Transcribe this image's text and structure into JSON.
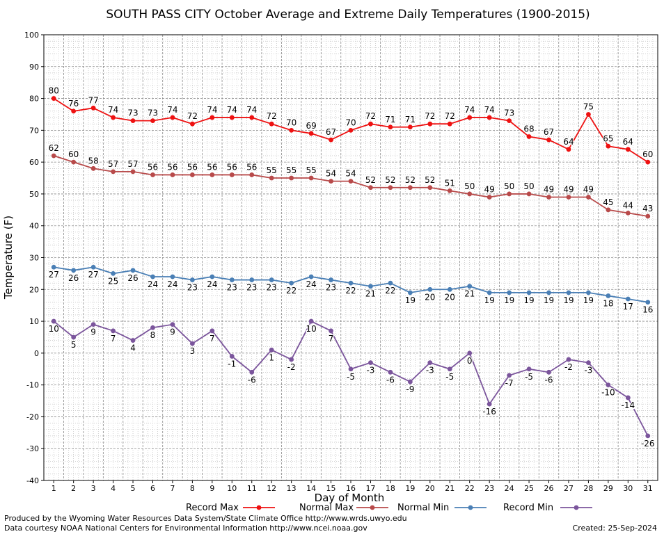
{
  "chart_data": {
    "type": "line",
    "title": "SOUTH PASS CITY October Average and Extreme Daily Temperatures (1900-2015)",
    "xlabel": "Day of Month",
    "ylabel": "Temperature (F)",
    "ylim": [
      -40,
      100
    ],
    "yticks": [
      -40,
      -30,
      -20,
      -10,
      0,
      10,
      20,
      30,
      40,
      50,
      60,
      70,
      80,
      90,
      100
    ],
    "x": [
      1,
      2,
      3,
      4,
      5,
      6,
      7,
      8,
      9,
      10,
      11,
      12,
      13,
      14,
      15,
      16,
      17,
      18,
      19,
      20,
      21,
      22,
      23,
      24,
      25,
      26,
      27,
      28,
      29,
      30,
      31
    ],
    "grid": true,
    "legend_position": "bottom",
    "series": [
      {
        "name": "Record Max",
        "color": "#ee1111",
        "values": [
          80,
          76,
          77,
          74,
          73,
          73,
          74,
          72,
          74,
          74,
          74,
          72,
          70,
          69,
          67,
          70,
          72,
          71,
          71,
          72,
          72,
          74,
          74,
          73,
          68,
          67,
          64,
          75,
          65,
          64,
          60
        ]
      },
      {
        "name": "Normal Max",
        "color": "#b84a4a",
        "values": [
          62,
          60,
          58,
          57,
          57,
          56,
          56,
          56,
          56,
          56,
          56,
          55,
          55,
          55,
          54,
          54,
          52,
          52,
          52,
          52,
          51,
          50,
          49,
          50,
          50,
          49,
          49,
          49,
          45,
          44,
          43
        ]
      },
      {
        "name": "Normal Min",
        "color": "#4a7fb5",
        "values": [
          27,
          26,
          27,
          25,
          26,
          24,
          24,
          23,
          24,
          23,
          23,
          23,
          22,
          24,
          23,
          22,
          21,
          22,
          19,
          20,
          20,
          21,
          19,
          19,
          19,
          19,
          19,
          19,
          18,
          17,
          16
        ]
      },
      {
        "name": "Record Min",
        "color": "#7b559c",
        "values": [
          10,
          5,
          9,
          7,
          4,
          8,
          9,
          3,
          7,
          -1,
          -6,
          1,
          -2,
          10,
          7,
          -5,
          -3,
          -6,
          -9,
          -3,
          -5,
          0,
          -16,
          -7,
          -5,
          -6,
          -2,
          -3,
          -10,
          -14,
          -26
        ]
      }
    ]
  },
  "footer": {
    "produced_by": "Produced by the Wyoming Water Resources Data System/State Climate Office http://www.wrds.uwyo.edu",
    "courtesy": "Data courtesy NOAA National Centers for Environmental Information http://www.ncei.noaa.gov",
    "created": "Created: 25-Sep-2024"
  }
}
